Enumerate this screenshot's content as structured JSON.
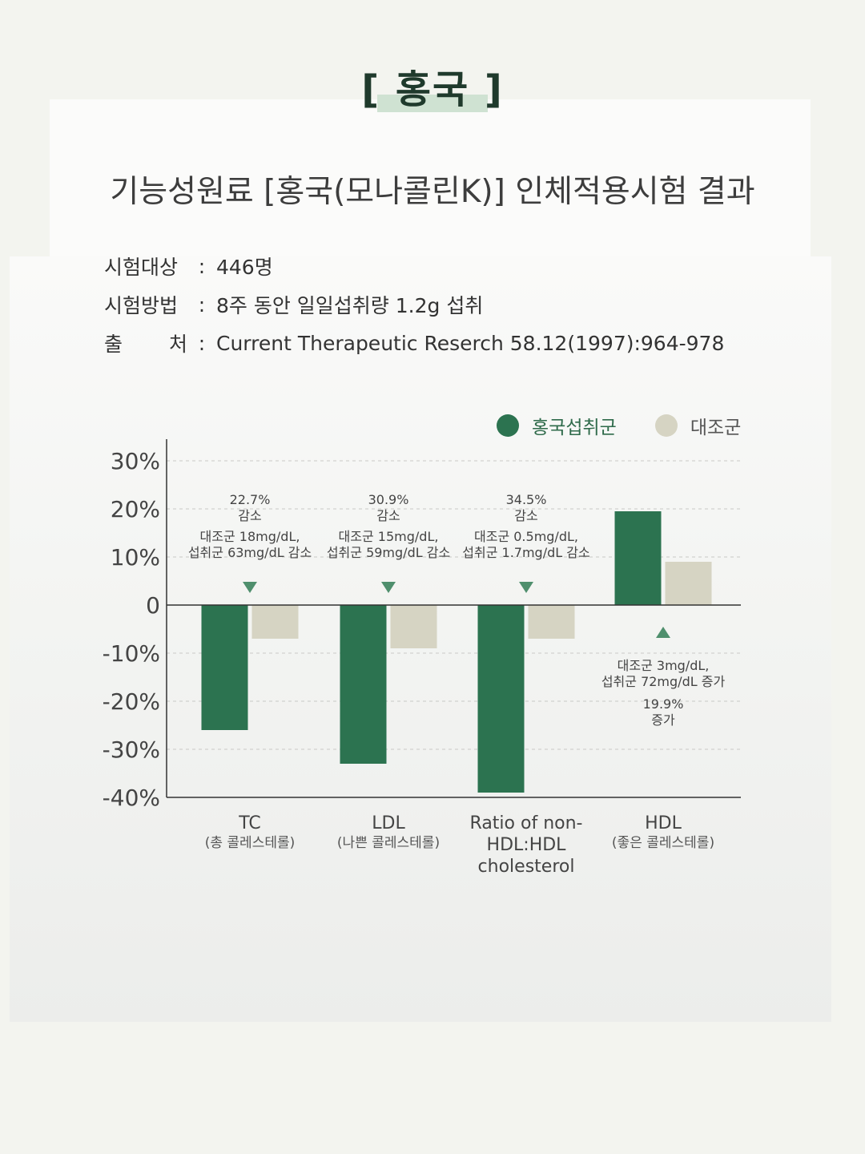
{
  "header": {
    "title": "[ 홍국 ]"
  },
  "title": "기능성원료 [홍국(모나콜린K)] 인체적용시험 결과",
  "info": [
    {
      "label": "시험대상",
      "value": "446명"
    },
    {
      "label": "시험방법",
      "value": "8주 동안 일일섭취량 1.2g 섭취"
    },
    {
      "label": "출 처",
      "value": "Current Therapeutic Reserch 58.12(1997):964-978"
    }
  ],
  "info_separator": ":",
  "colors": {
    "treatment": "#2c7350",
    "control": "#d6d4c3"
  },
  "chart_data": {
    "type": "bar",
    "categories": [
      "TC",
      "LDL",
      "Ratio of non-HDL:HDL cholesterol",
      "HDL"
    ],
    "category_sublabels": [
      "(총 콜레스테롤)",
      "(나쁜 콜레스테롤)",
      "",
      "(좋은 콜레스테롤)"
    ],
    "category_label_lines": [
      [
        "TC"
      ],
      [
        "LDL"
      ],
      [
        "Ratio of non-",
        "HDL:HDL",
        "cholesterol"
      ],
      [
        "HDL"
      ]
    ],
    "series": [
      {
        "name": "홍국섭취군",
        "values": [
          -26,
          -33,
          -39,
          19.5
        ]
      },
      {
        "name": "대조군",
        "values": [
          -7,
          -9,
          -7,
          9
        ]
      }
    ],
    "ylim": [
      -40,
      30
    ],
    "yticks": [
      30,
      20,
      10,
      0,
      -10,
      -20,
      -30,
      -40
    ],
    "ytick_labels": [
      "30%",
      "20%",
      "10%",
      "0",
      "-10%",
      "-20%",
      "-30%",
      "-40%"
    ],
    "grid": true,
    "legend": "top-right",
    "annotations": [
      {
        "category": 0,
        "lines": [
          "22.7%",
          "감소",
          "대조군 18mg/dL,",
          "섭취군 63mg/dL 감소"
        ],
        "arrow": "down",
        "position": "above"
      },
      {
        "category": 1,
        "lines": [
          "30.9%",
          "감소",
          "대조군 15mg/dL,",
          "섭취군 59mg/dL 감소"
        ],
        "arrow": "down",
        "position": "above"
      },
      {
        "category": 2,
        "lines": [
          "34.5%",
          "감소",
          "대조군 0.5mg/dL,",
          "섭취군 1.7mg/dL 감소"
        ],
        "arrow": "down",
        "position": "above"
      },
      {
        "category": 3,
        "lines": [
          "대조군 3mg/dL,",
          "섭취군 72mg/dL 증가",
          "19.9%",
          "증가"
        ],
        "arrow": "up",
        "position": "below"
      }
    ]
  }
}
